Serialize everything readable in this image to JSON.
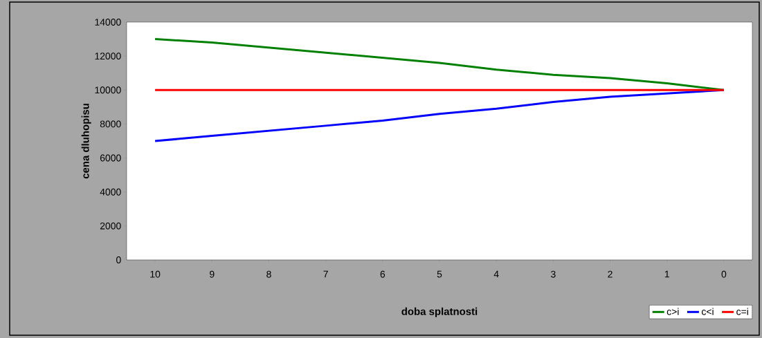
{
  "chart_data": {
    "type": "line",
    "xlabel": "doba splatnosti",
    "ylabel": "cena dluhopisu",
    "categories": [
      "10",
      "9",
      "8",
      "7",
      "6",
      "5",
      "4",
      "3",
      "2",
      "1",
      "0"
    ],
    "series": [
      {
        "name": "c>i",
        "color": "#008000",
        "values": [
          13000,
          12800,
          12500,
          12200,
          11900,
          11600,
          11200,
          10900,
          10700,
          10400,
          10000
        ]
      },
      {
        "name": "c<i",
        "color": "#0000ff",
        "values": [
          7000,
          7300,
          7600,
          7900,
          8200,
          8600,
          8900,
          9300,
          9600,
          9800,
          10000
        ]
      },
      {
        "name": "c=i",
        "color": "#ff0000",
        "values": [
          10000,
          10000,
          10000,
          10000,
          10000,
          10000,
          10000,
          10000,
          10000,
          10000,
          10000
        ]
      }
    ],
    "ylim": [
      0,
      14000
    ],
    "yticks": [
      0,
      2000,
      4000,
      6000,
      8000,
      10000,
      12000,
      14000
    ],
    "grid": false,
    "legend": "bottom right",
    "marker": "none",
    "line_style": "solid"
  }
}
